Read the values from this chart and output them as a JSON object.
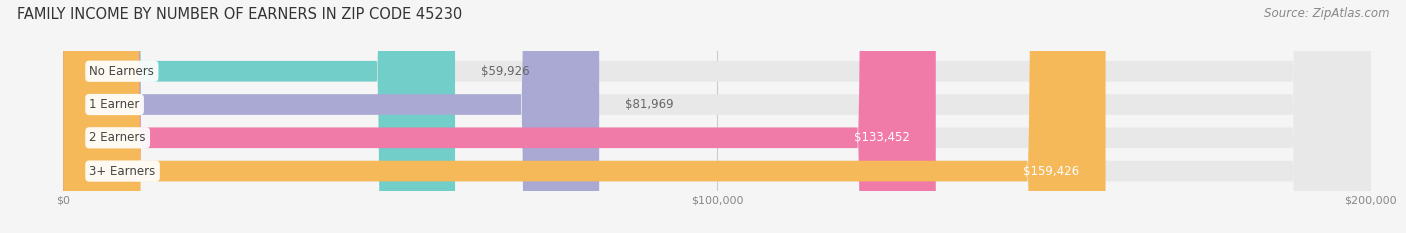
{
  "title": "FAMILY INCOME BY NUMBER OF EARNERS IN ZIP CODE 45230",
  "source": "Source: ZipAtlas.com",
  "categories": [
    "No Earners",
    "1 Earner",
    "2 Earners",
    "3+ Earners"
  ],
  "values": [
    59926,
    81969,
    133452,
    159426
  ],
  "bar_colors": [
    "#72cec9",
    "#a9a9d4",
    "#f07aa8",
    "#f5b95a"
  ],
  "bar_bg_color": "#e8e8e8",
  "value_labels": [
    "$59,926",
    "$81,969",
    "$133,452",
    "$159,426"
  ],
  "value_label_inside": [
    false,
    false,
    true,
    true
  ],
  "xmax": 200000,
  "xticks": [
    0,
    100000,
    200000
  ],
  "xtick_labels": [
    "$0",
    "$100,000",
    "$200,000"
  ],
  "background_color": "#f5f5f5",
  "title_fontsize": 10.5,
  "source_fontsize": 8.5,
  "value_label_fontsize": 8.5,
  "category_label_fontsize": 8.5
}
